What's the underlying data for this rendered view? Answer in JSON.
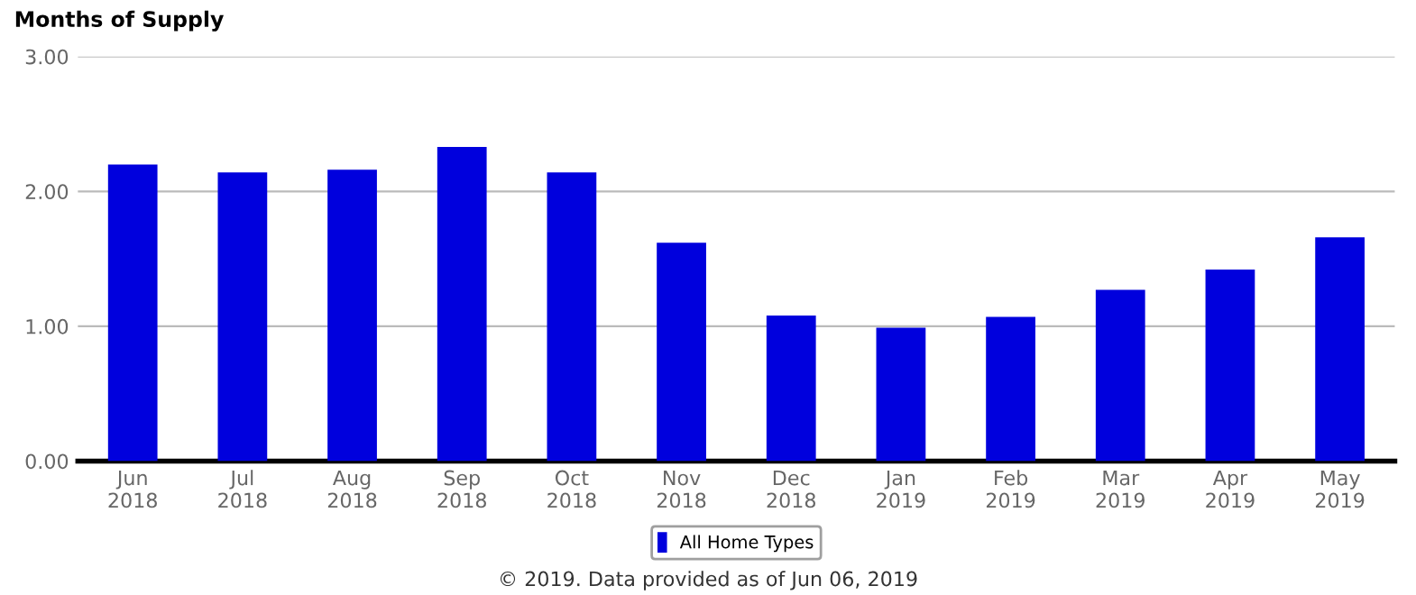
{
  "chart_data": {
    "type": "bar",
    "title": "Months of Supply",
    "categories": [
      "Jun\n2018",
      "Jul\n2018",
      "Aug\n2018",
      "Sep\n2018",
      "Oct\n2018",
      "Nov\n2018",
      "Dec\n2018",
      "Jan\n2019",
      "Feb\n2019",
      "Mar\n2019",
      "Apr\n2019",
      "May\n2019"
    ],
    "series": [
      {
        "name": "All Home Types",
        "color": "#0000dd",
        "values": [
          2.2,
          2.14,
          2.16,
          2.33,
          2.14,
          1.62,
          1.08,
          0.99,
          1.07,
          1.27,
          1.42,
          1.66
        ]
      }
    ],
    "ylim": [
      0,
      3
    ],
    "yticks": [
      {
        "value": 0,
        "label": "0.00"
      },
      {
        "value": 1,
        "label": "1.00"
      },
      {
        "value": 2,
        "label": "2.00"
      },
      {
        "value": 3,
        "label": "3.00"
      }
    ],
    "grid": "y",
    "legend": "bottom",
    "annotations": [
      "© 2019. Data provided as of Jun 06, 2019"
    ]
  }
}
